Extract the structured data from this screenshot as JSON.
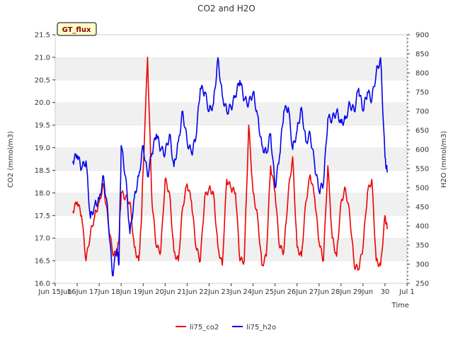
{
  "chart_data": {
    "type": "line",
    "title": "CO2 and H2O",
    "xlabel": "Time",
    "ylabel_left": "CO2 (mmol/m3)",
    "ylabel_right": "H2O (mmol/m3)",
    "site_label": "GT_flux",
    "x_range": [
      "Jun 15",
      "Jul 1"
    ],
    "x_ticks": [
      {
        "day": 15,
        "label": "Jun 15Jun"
      },
      {
        "day": 16,
        "label": "16Jun"
      },
      {
        "day": 17,
        "label": "17Jun"
      },
      {
        "day": 18,
        "label": "18Jun"
      },
      {
        "day": 19,
        "label": "19Jun"
      },
      {
        "day": 20,
        "label": "20Jun"
      },
      {
        "day": 21,
        "label": "21Jun"
      },
      {
        "day": 22,
        "label": "22Jun"
      },
      {
        "day": 23,
        "label": "23Jun"
      },
      {
        "day": 24,
        "label": "24Jun"
      },
      {
        "day": 25,
        "label": "25Jun"
      },
      {
        "day": 26,
        "label": "26Jun"
      },
      {
        "day": 27,
        "label": "27Jun"
      },
      {
        "day": 28,
        "label": "28Jun"
      },
      {
        "day": 29,
        "label": "29Jun"
      },
      {
        "day": 30,
        "label": "30"
      },
      {
        "day": 31,
        "label": "Jul 1"
      }
    ],
    "y_left_range": [
      16.0,
      21.5
    ],
    "y_left_ticks": [
      "16.0",
      "16.5",
      "17.0",
      "17.5",
      "18.0",
      "18.5",
      "19.0",
      "19.5",
      "20.0",
      "20.5",
      "21.0",
      "21.5"
    ],
    "y_right_range": [
      250,
      900
    ],
    "y_right_ticks": [
      "250",
      "300",
      "350",
      "400",
      "450",
      "500",
      "550",
      "600",
      "650",
      "700",
      "750",
      "800",
      "850",
      "900"
    ],
    "grid": "horizontal bands",
    "legend_position": "bottom-center",
    "series": [
      {
        "name": "li75_co2",
        "axis": "left",
        "color": "#ee0000",
        "x": [
          15.8,
          16.0,
          16.2,
          16.4,
          16.6,
          16.8,
          17.0,
          17.2,
          17.4,
          17.6,
          17.8,
          17.9,
          18.0,
          18.2,
          18.4,
          18.6,
          18.8,
          18.9,
          19.0,
          19.2,
          19.4,
          19.6,
          19.8,
          20.0,
          20.2,
          20.4,
          20.6,
          20.8,
          21.0,
          21.2,
          21.4,
          21.6,
          21.8,
          22.0,
          22.2,
          22.4,
          22.6,
          22.8,
          23.0,
          23.2,
          23.4,
          23.6,
          23.8,
          24.0,
          24.2,
          24.4,
          24.6,
          24.8,
          25.0,
          25.2,
          25.4,
          25.6,
          25.8,
          26.0,
          26.2,
          26.4,
          26.6,
          26.8,
          27.0,
          27.2,
          27.4,
          27.6,
          27.8,
          28.0,
          28.2,
          28.4,
          28.6,
          28.8,
          29.0,
          29.2,
          29.4,
          29.6,
          29.8,
          30.0,
          30.1
        ],
        "values": [
          17.6,
          17.8,
          17.5,
          16.5,
          17.1,
          17.5,
          17.8,
          18.2,
          17.4,
          16.7,
          16.6,
          17.0,
          18.0,
          17.9,
          17.8,
          16.8,
          16.5,
          17.2,
          18.5,
          21.0,
          17.8,
          16.8,
          16.7,
          18.3,
          18.0,
          16.7,
          16.5,
          17.7,
          18.2,
          17.8,
          16.8,
          16.5,
          17.9,
          18.1,
          18.0,
          16.8,
          16.4,
          18.3,
          18.1,
          18.0,
          16.5,
          16.5,
          19.5,
          18.0,
          17.5,
          16.4,
          16.6,
          18.6,
          18.0,
          16.8,
          16.7,
          18.0,
          18.8,
          16.8,
          16.6,
          17.8,
          18.4,
          17.9,
          16.9,
          16.5,
          18.6,
          17.0,
          16.6,
          17.8,
          18.1,
          17.5,
          16.4,
          16.3,
          16.8,
          18.0,
          18.3,
          16.5,
          16.4,
          17.5,
          17.2
        ]
      },
      {
        "name": "li75_h2o",
        "axis": "right",
        "color": "#0000ee",
        "x": [
          15.8,
          16.0,
          16.2,
          16.4,
          16.6,
          16.8,
          17.0,
          17.2,
          17.4,
          17.6,
          17.8,
          17.9,
          18.0,
          18.2,
          18.4,
          18.6,
          18.8,
          19.0,
          19.2,
          19.4,
          19.6,
          19.8,
          20.0,
          20.2,
          20.4,
          20.6,
          20.8,
          21.0,
          21.2,
          21.4,
          21.6,
          21.8,
          22.0,
          22.2,
          22.4,
          22.6,
          22.8,
          23.0,
          23.2,
          23.4,
          23.6,
          23.8,
          24.0,
          24.2,
          24.4,
          24.6,
          24.8,
          25.0,
          25.2,
          25.4,
          25.6,
          25.8,
          26.0,
          26.2,
          26.4,
          26.6,
          26.8,
          27.0,
          27.2,
          27.4,
          27.6,
          27.8,
          28.0,
          28.2,
          28.4,
          28.6,
          28.8,
          29.0,
          29.2,
          29.4,
          29.6,
          29.8,
          30.0,
          30.1
        ],
        "values": [
          570,
          585,
          550,
          570,
          420,
          455,
          470,
          530,
          430,
          270,
          340,
          300,
          610,
          530,
          380,
          475,
          530,
          610,
          530,
          590,
          640,
          600,
          590,
          640,
          555,
          620,
          700,
          620,
          590,
          630,
          760,
          750,
          700,
          720,
          840,
          740,
          700,
          710,
          740,
          780,
          730,
          720,
          750,
          690,
          610,
          590,
          640,
          500,
          580,
          700,
          710,
          600,
          650,
          710,
          620,
          640,
          560,
          490,
          510,
          680,
          680,
          700,
          670,
          680,
          720,
          700,
          760,
          700,
          750,
          730,
          800,
          840,
          580,
          540
        ]
      }
    ]
  }
}
